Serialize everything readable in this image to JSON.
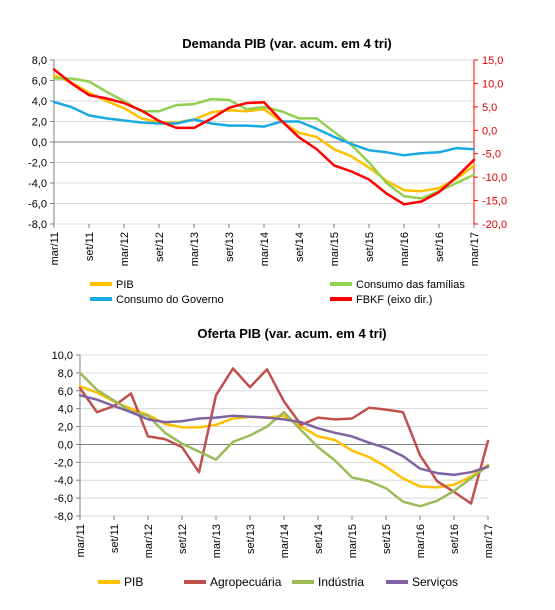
{
  "chart_data": [
    {
      "type": "line",
      "title": "Demanda PIB (var. acum. em 4 tri)",
      "x": [
        "mar/11",
        "jun/11",
        "set/11",
        "dez/11",
        "mar/12",
        "jun/12",
        "set/12",
        "dez/12",
        "mar/13",
        "jun/13",
        "set/13",
        "dez/13",
        "mar/14",
        "jun/14",
        "set/14",
        "dez/14",
        "mar/15",
        "jun/15",
        "set/15",
        "dez/15",
        "mar/16",
        "jun/16",
        "set/16",
        "dez/16",
        "mar/17"
      ],
      "x_tick_labels": [
        "mar/11",
        "set/11",
        "mar/12",
        "set/12",
        "mar/13",
        "set/13",
        "mar/14",
        "set/14",
        "mar/15",
        "set/15",
        "mar/16",
        "set/16",
        "mar/17"
      ],
      "ylim": [
        -8,
        8
      ],
      "y_ticks": [
        "-8,0",
        "-6,0",
        "-4,0",
        "-2,0",
        "0,0",
        "2,0",
        "4,0",
        "6,0",
        "8,0"
      ],
      "y2lim": [
        -20,
        15
      ],
      "y2_ticks": [
        "-20,0",
        "-15,0",
        "-10,0",
        "-5,0",
        "0,0",
        "5,0",
        "10,0",
        "15,0"
      ],
      "legend_position": "bottom",
      "series": [
        {
          "name": "PIB",
          "color": "#ffc000",
          "axis": "left",
          "values": [
            6.5,
            5.8,
            4.8,
            4.0,
            3.3,
            2.3,
            1.9,
            1.9,
            2.2,
            2.9,
            3.1,
            3.0,
            3.2,
            2.0,
            0.9,
            0.5,
            -0.7,
            -1.4,
            -2.5,
            -3.8,
            -4.7,
            -4.8,
            -4.5,
            -3.6,
            -2.3
          ]
        },
        {
          "name": "Consumo das famílias",
          "color": "#92d050",
          "axis": "left",
          "values": [
            6.2,
            6.2,
            5.9,
            4.9,
            4.0,
            3.0,
            3.0,
            3.6,
            3.7,
            4.2,
            4.1,
            3.2,
            3.4,
            3.0,
            2.3,
            2.3,
            1.0,
            -0.3,
            -2.0,
            -4.0,
            -5.3,
            -5.5,
            -4.8,
            -4.0,
            -3.2
          ]
        },
        {
          "name": "Consumo do Governo",
          "color": "#1ba9e1",
          "axis": "left",
          "values": [
            3.9,
            3.4,
            2.6,
            2.3,
            2.1,
            1.9,
            1.8,
            1.8,
            2.2,
            1.8,
            1.6,
            1.6,
            1.5,
            2.0,
            2.0,
            1.3,
            0.5,
            -0.2,
            -0.8,
            -1.0,
            -1.3,
            -1.1,
            -1.0,
            -0.6,
            -0.7
          ]
        },
        {
          "name": "FBKF (eixo dir.)",
          "color": "#ff0000",
          "axis": "right",
          "values": [
            13.0,
            10.0,
            7.5,
            6.8,
            5.8,
            4.2,
            2.0,
            0.5,
            0.5,
            2.5,
            4.8,
            5.8,
            6.0,
            2.0,
            -1.5,
            -4.0,
            -7.5,
            -8.8,
            -10.5,
            -13.5,
            -15.8,
            -15.2,
            -13.2,
            -10.0,
            -6.3
          ]
        }
      ]
    },
    {
      "type": "line",
      "title": "Oferta PIB (var. acum. em 4 tri)",
      "x": [
        "mar/11",
        "jun/11",
        "set/11",
        "dez/11",
        "mar/12",
        "jun/12",
        "set/12",
        "dez/12",
        "mar/13",
        "jun/13",
        "set/13",
        "dez/13",
        "mar/14",
        "jun/14",
        "set/14",
        "dez/14",
        "mar/15",
        "jun/15",
        "set/15",
        "dez/15",
        "mar/16",
        "jun/16",
        "set/16",
        "dez/16",
        "mar/17"
      ],
      "x_tick_labels": [
        "mar/11",
        "set/11",
        "mar/12",
        "set/12",
        "mar/13",
        "set/13",
        "mar/14",
        "set/14",
        "mar/15",
        "set/15",
        "mar/16",
        "set/16",
        "mar/17"
      ],
      "ylim": [
        -8,
        10
      ],
      "y_ticks": [
        "-8,0",
        "-6,0",
        "-4,0",
        "-2,0",
        "0,0",
        "2,0",
        "4,0",
        "6,0",
        "8,0",
        "10,0"
      ],
      "legend_position": "bottom",
      "series": [
        {
          "name": "PIB",
          "color": "#ffc000",
          "values": [
            6.5,
            5.8,
            4.8,
            4.0,
            3.3,
            2.3,
            1.9,
            1.9,
            2.2,
            2.9,
            3.1,
            3.0,
            3.2,
            2.0,
            0.9,
            0.5,
            -0.7,
            -1.4,
            -2.5,
            -3.8,
            -4.7,
            -4.8,
            -4.5,
            -3.6,
            -2.3
          ]
        },
        {
          "name": "Agropecuária",
          "color": "#c0504d",
          "values": [
            6.3,
            3.6,
            4.3,
            5.7,
            0.9,
            0.6,
            -0.3,
            -3.1,
            5.5,
            8.5,
            6.4,
            8.4,
            4.8,
            2.2,
            3.0,
            2.8,
            2.9,
            4.1,
            3.9,
            3.6,
            -1.2,
            -4.1,
            -5.3,
            -6.6,
            0.4
          ]
        },
        {
          "name": "Indústria",
          "color": "#9bbb59",
          "values": [
            8.0,
            6.1,
            4.9,
            3.7,
            3.2,
            1.3,
            0.1,
            -0.8,
            -1.7,
            0.3,
            1.0,
            2.0,
            3.6,
            1.6,
            -0.3,
            -1.8,
            -3.7,
            -4.1,
            -4.9,
            -6.4,
            -6.9,
            -6.3,
            -5.2,
            -3.8,
            -2.4
          ]
        },
        {
          "name": "Serviços",
          "color": "#8064a2",
          "values": [
            5.5,
            5.0,
            4.3,
            3.6,
            2.8,
            2.5,
            2.6,
            2.9,
            3.0,
            3.2,
            3.1,
            3.0,
            2.8,
            2.5,
            1.8,
            1.3,
            0.9,
            0.2,
            -0.4,
            -1.3,
            -2.7,
            -3.2,
            -3.4,
            -3.1,
            -2.5
          ]
        }
      ]
    }
  ]
}
